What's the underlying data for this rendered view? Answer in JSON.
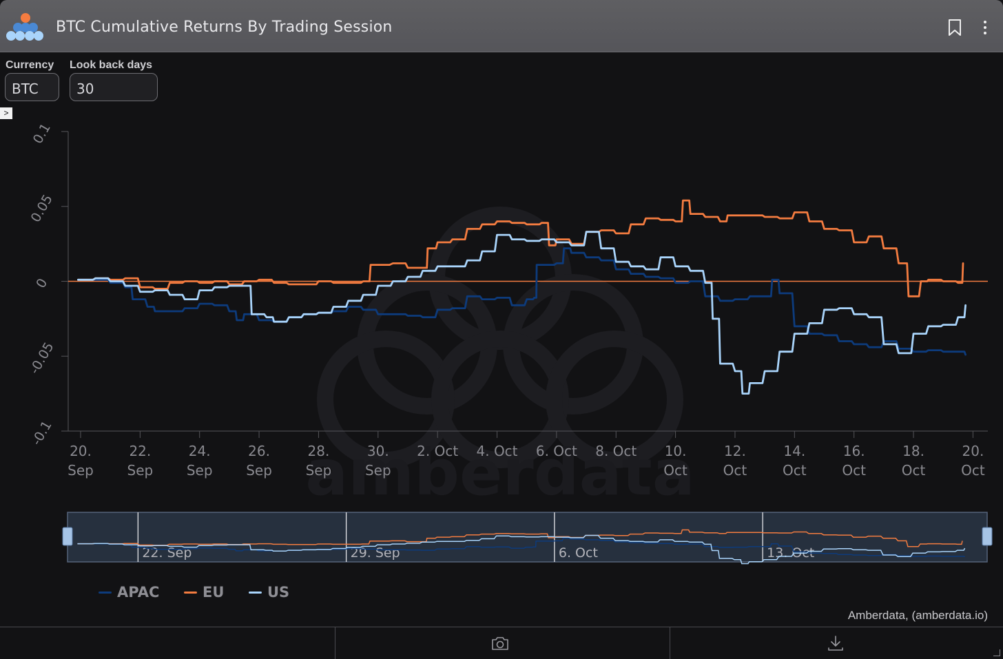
{
  "header": {
    "title": "BTC Cumulative Returns By Trading Session",
    "icons": [
      "amberdata-logo",
      "bookmark-icon",
      "more-vertical-icon"
    ]
  },
  "filters": {
    "currency": {
      "label": "Currency",
      "value": "BTC"
    },
    "lookback": {
      "label": "Look back days",
      "value": "30"
    }
  },
  "watermark": "amberdata",
  "credit": "Amberdata, (amberdata.io)",
  "footer": {
    "icons": [
      "camera-icon",
      "download-icon"
    ]
  },
  "colors": {
    "APAC": "#0d3b7c",
    "EU": "#f47c40",
    "US": "#a9d4fb",
    "zero_line": "#f47c40",
    "background": "#121214"
  },
  "chart_data": {
    "type": "line",
    "title": "BTC Cumulative Returns By Trading Session",
    "x_ticks": [
      {
        "date": "2023-09-20",
        "label": [
          "20.",
          "Sep"
        ]
      },
      {
        "date": "2023-09-22",
        "label": [
          "22.",
          "Sep"
        ]
      },
      {
        "date": "2023-09-24",
        "label": [
          "24.",
          "Sep"
        ]
      },
      {
        "date": "2023-09-26",
        "label": [
          "26.",
          "Sep"
        ]
      },
      {
        "date": "2023-09-28",
        "label": [
          "28.",
          "Sep"
        ]
      },
      {
        "date": "2023-09-30",
        "label": [
          "30.",
          "Sep"
        ]
      },
      {
        "date": "2023-10-02",
        "label": [
          "2. Oct"
        ]
      },
      {
        "date": "2023-10-04",
        "label": [
          "4. Oct"
        ]
      },
      {
        "date": "2023-10-06",
        "label": [
          "6. Oct"
        ]
      },
      {
        "date": "2023-10-08",
        "label": [
          "8. Oct"
        ]
      },
      {
        "date": "2023-10-10",
        "label": [
          "10.",
          "Oct"
        ]
      },
      {
        "date": "2023-10-12",
        "label": [
          "12.",
          "Oct"
        ]
      },
      {
        "date": "2023-10-14",
        "label": [
          "14.",
          "Oct"
        ]
      },
      {
        "date": "2023-10-16",
        "label": [
          "16.",
          "Oct"
        ]
      },
      {
        "date": "2023-10-18",
        "label": [
          "18.",
          "Oct"
        ]
      },
      {
        "date": "2023-10-20",
        "label": [
          "20.",
          "Oct"
        ]
      }
    ],
    "y_ticks": [
      {
        "v": 0.1,
        "label": "0.1"
      },
      {
        "v": 0.05,
        "label": "0.05"
      },
      {
        "v": 0,
        "label": "0"
      },
      {
        "v": -0.05,
        "label": "-0.05"
      },
      {
        "v": -0.1,
        "label": "-0.1"
      }
    ],
    "xlim": [
      "2023-09-19 14:00",
      "2023-10-20 12:00"
    ],
    "ylim": [
      -0.1,
      0.1
    ],
    "grid": false,
    "legend_position": "bottom-left",
    "series": [
      {
        "name": "APAC",
        "color": "#0d3b7c",
        "points": [
          [
            "2023-09-19 22:00",
            0.001
          ],
          [
            "2023-09-20 12:00",
            0.001
          ],
          [
            "2023-09-21 00:00",
            -0.001
          ],
          [
            "2023-09-21 12:00",
            -0.004
          ],
          [
            "2023-09-21 18:00",
            -0.012
          ],
          [
            "2023-09-22 06:00",
            -0.017
          ],
          [
            "2023-09-22 12:00",
            -0.02
          ],
          [
            "2023-09-23 00:00",
            -0.02
          ],
          [
            "2023-09-23 12:00",
            -0.018
          ],
          [
            "2023-09-24 00:00",
            -0.015
          ],
          [
            "2023-09-24 12:00",
            -0.016
          ],
          [
            "2023-09-25 00:00",
            -0.02
          ],
          [
            "2023-09-25 06:00",
            -0.026
          ],
          [
            "2023-09-25 12:00",
            -0.022
          ],
          [
            "2023-09-26 00:00",
            -0.026
          ],
          [
            "2023-09-26 12:00",
            -0.027
          ],
          [
            "2023-09-27 00:00",
            -0.024
          ],
          [
            "2023-09-27 12:00",
            -0.022
          ],
          [
            "2023-09-28 00:00",
            -0.021
          ],
          [
            "2023-09-28 12:00",
            -0.02
          ],
          [
            "2023-09-29 00:00",
            -0.017
          ],
          [
            "2023-09-29 12:00",
            -0.019
          ],
          [
            "2023-09-30 00:00",
            -0.022
          ],
          [
            "2023-09-30 12:00",
            -0.022
          ],
          [
            "2023-10-01 00:00",
            -0.023
          ],
          [
            "2023-10-01 12:00",
            -0.024
          ],
          [
            "2023-10-02 00:00",
            -0.019
          ],
          [
            "2023-10-02 12:00",
            -0.018
          ],
          [
            "2023-10-03 00:00",
            -0.01
          ],
          [
            "2023-10-03 12:00",
            -0.012
          ],
          [
            "2023-10-04 00:00",
            -0.011
          ],
          [
            "2023-10-04 12:00",
            -0.016
          ],
          [
            "2023-10-05 00:00",
            -0.012
          ],
          [
            "2023-10-05 06:00",
            -0.011
          ],
          [
            "2023-10-05 08:00",
            0.011
          ],
          [
            "2023-10-05 12:00",
            0.011
          ],
          [
            "2023-10-06 00:00",
            0.012
          ],
          [
            "2023-10-06 06:00",
            0.022
          ],
          [
            "2023-10-06 12:00",
            0.019
          ],
          [
            "2023-10-07 00:00",
            0.016
          ],
          [
            "2023-10-07 12:00",
            0.014
          ],
          [
            "2023-10-08 00:00",
            0.008
          ],
          [
            "2023-10-08 12:00",
            0.005
          ],
          [
            "2023-10-09 00:00",
            0.003
          ],
          [
            "2023-10-09 12:00",
            0.002
          ],
          [
            "2023-10-10 00:00",
            -0.001
          ],
          [
            "2023-10-10 12:00",
            0.0
          ],
          [
            "2023-10-11 00:00",
            -0.01
          ],
          [
            "2023-10-11 12:00",
            -0.013
          ],
          [
            "2023-10-12 00:00",
            -0.012
          ],
          [
            "2023-10-12 12:00",
            -0.01
          ],
          [
            "2023-10-13 00:00",
            -0.01
          ],
          [
            "2023-10-13 06:00",
            0.001
          ],
          [
            "2023-10-13 12:00",
            -0.008
          ],
          [
            "2023-10-14 00:00",
            -0.03
          ],
          [
            "2023-10-14 12:00",
            -0.035
          ],
          [
            "2023-10-15 00:00",
            -0.036
          ],
          [
            "2023-10-15 12:00",
            -0.04
          ],
          [
            "2023-10-16 00:00",
            -0.042
          ],
          [
            "2023-10-16 12:00",
            -0.044
          ],
          [
            "2023-10-17 00:00",
            -0.04
          ],
          [
            "2023-10-17 12:00",
            -0.045
          ],
          [
            "2023-10-18 00:00",
            -0.047
          ],
          [
            "2023-10-18 12:00",
            -0.046
          ],
          [
            "2023-10-19 00:00",
            -0.047
          ],
          [
            "2023-10-19 12:00",
            -0.047
          ],
          [
            "2023-10-19 18:00",
            -0.049
          ]
        ]
      },
      {
        "name": "EU",
        "color": "#f47c40",
        "points": [
          [
            "2023-09-19 22:00",
            0.001
          ],
          [
            "2023-09-20 12:00",
            0.002
          ],
          [
            "2023-09-21 00:00",
            0.001
          ],
          [
            "2023-09-21 12:00",
            0.002
          ],
          [
            "2023-09-22 00:00",
            -0.004
          ],
          [
            "2023-09-22 12:00",
            -0.005
          ],
          [
            "2023-09-23 00:00",
            -0.001
          ],
          [
            "2023-09-23 12:00",
            0.0
          ],
          [
            "2023-09-24 00:00",
            -0.001
          ],
          [
            "2023-09-24 12:00",
            0.0
          ],
          [
            "2023-09-25 00:00",
            -0.002
          ],
          [
            "2023-09-25 12:00",
            0.0
          ],
          [
            "2023-09-26 00:00",
            0.001
          ],
          [
            "2023-09-26 12:00",
            -0.001
          ],
          [
            "2023-09-27 00:00",
            -0.002
          ],
          [
            "2023-09-27 12:00",
            -0.002
          ],
          [
            "2023-09-28 00:00",
            0.0
          ],
          [
            "2023-09-28 12:00",
            -0.001
          ],
          [
            "2023-09-29 00:00",
            -0.001
          ],
          [
            "2023-09-29 12:00",
            0.0
          ],
          [
            "2023-09-29 18:00",
            0.011
          ],
          [
            "2023-09-30 12:00",
            0.012
          ],
          [
            "2023-10-01 00:00",
            0.009
          ],
          [
            "2023-10-01 12:00",
            0.009
          ],
          [
            "2023-10-01 16:00",
            0.022
          ],
          [
            "2023-10-02 00:00",
            0.026
          ],
          [
            "2023-10-02 12:00",
            0.028
          ],
          [
            "2023-10-03 00:00",
            0.035
          ],
          [
            "2023-10-03 12:00",
            0.038
          ],
          [
            "2023-10-04 00:00",
            0.04
          ],
          [
            "2023-10-04 12:00",
            0.039
          ],
          [
            "2023-10-05 00:00",
            0.038
          ],
          [
            "2023-10-05 12:00",
            0.039
          ],
          [
            "2023-10-05 18:00",
            0.024
          ],
          [
            "2023-10-06 00:00",
            0.028
          ],
          [
            "2023-10-06 12:00",
            0.025
          ],
          [
            "2023-10-07 00:00",
            0.033
          ],
          [
            "2023-10-07 12:00",
            0.034
          ],
          [
            "2023-10-08 00:00",
            0.032
          ],
          [
            "2023-10-08 12:00",
            0.038
          ],
          [
            "2023-10-09 00:00",
            0.042
          ],
          [
            "2023-10-09 12:00",
            0.041
          ],
          [
            "2023-10-10 00:00",
            0.04
          ],
          [
            "2023-10-10 06:00",
            0.054
          ],
          [
            "2023-10-10 12:00",
            0.045
          ],
          [
            "2023-10-11 00:00",
            0.043
          ],
          [
            "2023-10-11 12:00",
            0.04
          ],
          [
            "2023-10-11 18:00",
            0.044
          ],
          [
            "2023-10-12 12:00",
            0.044
          ],
          [
            "2023-10-13 00:00",
            0.043
          ],
          [
            "2023-10-13 12:00",
            0.042
          ],
          [
            "2023-10-14 00:00",
            0.046
          ],
          [
            "2023-10-14 12:00",
            0.04
          ],
          [
            "2023-10-15 00:00",
            0.035
          ],
          [
            "2023-10-15 12:00",
            0.034
          ],
          [
            "2023-10-16 00:00",
            0.026
          ],
          [
            "2023-10-16 12:00",
            0.03
          ],
          [
            "2023-10-17 00:00",
            0.022
          ],
          [
            "2023-10-17 12:00",
            0.012
          ],
          [
            "2023-10-17 20:00",
            -0.01
          ],
          [
            "2023-10-18 06:00",
            0.0
          ],
          [
            "2023-10-18 12:00",
            0.001
          ],
          [
            "2023-10-19 00:00",
            0.0
          ],
          [
            "2023-10-19 12:00",
            -0.001
          ],
          [
            "2023-10-19 16:00",
            0.012
          ]
        ]
      },
      {
        "name": "US",
        "color": "#a9d4fb",
        "points": [
          [
            "2023-09-19 22:00",
            0.001
          ],
          [
            "2023-09-20 12:00",
            0.002
          ],
          [
            "2023-09-21 00:00",
            0.0
          ],
          [
            "2023-09-21 12:00",
            -0.003
          ],
          [
            "2023-09-22 00:00",
            -0.007
          ],
          [
            "2023-09-22 12:00",
            -0.006
          ],
          [
            "2023-09-23 00:00",
            -0.009
          ],
          [
            "2023-09-23 12:00",
            -0.012
          ],
          [
            "2023-09-24 00:00",
            -0.006
          ],
          [
            "2023-09-24 12:00",
            -0.004
          ],
          [
            "2023-09-25 00:00",
            -0.003
          ],
          [
            "2023-09-25 12:00",
            -0.003
          ],
          [
            "2023-09-25 18:00",
            -0.022
          ],
          [
            "2023-09-26 06:00",
            -0.024
          ],
          [
            "2023-09-26 12:00",
            -0.027
          ],
          [
            "2023-09-27 00:00",
            -0.024
          ],
          [
            "2023-09-27 12:00",
            -0.022
          ],
          [
            "2023-09-28 00:00",
            -0.021
          ],
          [
            "2023-09-28 12:00",
            -0.017
          ],
          [
            "2023-09-29 00:00",
            -0.013
          ],
          [
            "2023-09-29 12:00",
            -0.009
          ],
          [
            "2023-09-30 00:00",
            -0.003
          ],
          [
            "2023-09-30 12:00",
            0.0
          ],
          [
            "2023-10-01 00:00",
            0.003
          ],
          [
            "2023-10-01 12:00",
            0.007
          ],
          [
            "2023-10-02 00:00",
            0.01
          ],
          [
            "2023-10-02 12:00",
            0.01
          ],
          [
            "2023-10-03 00:00",
            0.014
          ],
          [
            "2023-10-03 12:00",
            0.02
          ],
          [
            "2023-10-04 00:00",
            0.031
          ],
          [
            "2023-10-04 12:00",
            0.028
          ],
          [
            "2023-10-05 00:00",
            0.027
          ],
          [
            "2023-10-05 12:00",
            0.028
          ],
          [
            "2023-10-06 00:00",
            0.026
          ],
          [
            "2023-10-06 12:00",
            0.024
          ],
          [
            "2023-10-07 00:00",
            0.033
          ],
          [
            "2023-10-07 12:00",
            0.022
          ],
          [
            "2023-10-08 00:00",
            0.013
          ],
          [
            "2023-10-08 12:00",
            0.01
          ],
          [
            "2023-10-09 00:00",
            0.008
          ],
          [
            "2023-10-09 12:00",
            0.016
          ],
          [
            "2023-10-10 00:00",
            0.01
          ],
          [
            "2023-10-10 12:00",
            0.007
          ],
          [
            "2023-10-11 00:00",
            -0.001
          ],
          [
            "2023-10-11 06:00",
            -0.025
          ],
          [
            "2023-10-11 12:00",
            -0.055
          ],
          [
            "2023-10-12 00:00",
            -0.06
          ],
          [
            "2023-10-12 06:00",
            -0.075
          ],
          [
            "2023-10-12 12:00",
            -0.068
          ],
          [
            "2023-10-13 00:00",
            -0.06
          ],
          [
            "2023-10-13 12:00",
            -0.047
          ],
          [
            "2023-10-14 00:00",
            -0.035
          ],
          [
            "2023-10-14 12:00",
            -0.028
          ],
          [
            "2023-10-15 00:00",
            -0.019
          ],
          [
            "2023-10-15 12:00",
            -0.018
          ],
          [
            "2023-10-16 00:00",
            -0.022
          ],
          [
            "2023-10-16 12:00",
            -0.024
          ],
          [
            "2023-10-17 00:00",
            -0.042
          ],
          [
            "2023-10-17 12:00",
            -0.048
          ],
          [
            "2023-10-18 00:00",
            -0.035
          ],
          [
            "2023-10-18 12:00",
            -0.03
          ],
          [
            "2023-10-19 00:00",
            -0.029
          ],
          [
            "2023-10-19 12:00",
            -0.024
          ],
          [
            "2023-10-19 18:00",
            -0.016
          ]
        ]
      }
    ],
    "navigator": {
      "labels": [
        "22. Sep",
        "29. Sep",
        "6. Oct",
        "13. Oct"
      ],
      "label_dates": [
        "2023-09-22",
        "2023-09-29",
        "2023-10-06",
        "2023-10-13"
      ]
    }
  }
}
